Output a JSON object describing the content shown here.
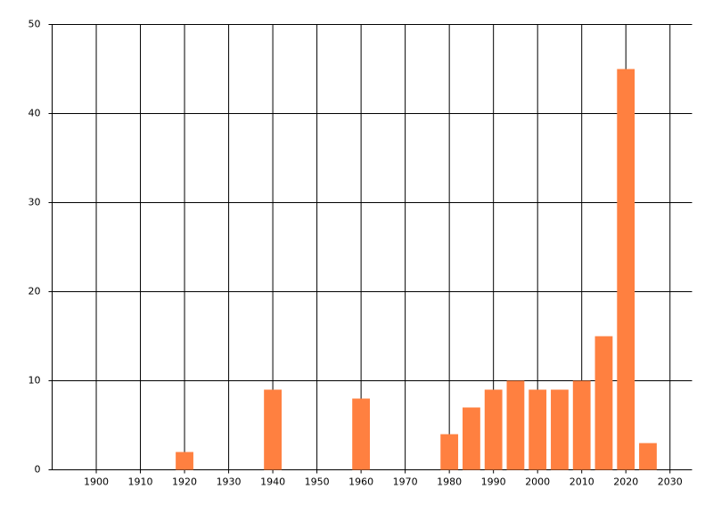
{
  "chart_data": {
    "type": "bar",
    "x": [
      1920,
      1940,
      1960,
      1980,
      1985,
      1990,
      1995,
      2000,
      2005,
      2010,
      2015,
      2020,
      2025
    ],
    "values": [
      2,
      9,
      8,
      4,
      7,
      9,
      10,
      9,
      9,
      10,
      15,
      45,
      3
    ],
    "color": "#ff8040",
    "xlim": [
      1890,
      2035
    ],
    "xticks": [
      1900,
      1910,
      1920,
      1930,
      1940,
      1950,
      1960,
      1970,
      1980,
      1990,
      2000,
      2010,
      2020,
      2030
    ],
    "ylim": [
      0,
      50
    ],
    "yticks": [
      0,
      10,
      20,
      30,
      40,
      50
    ],
    "grid": true
  }
}
